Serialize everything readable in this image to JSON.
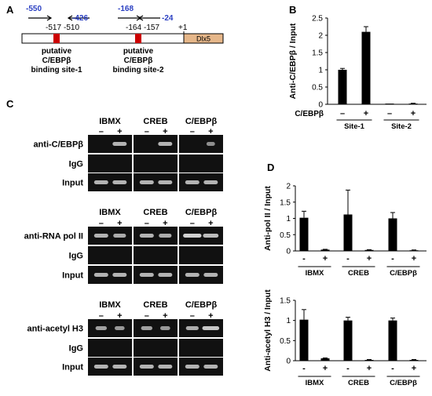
{
  "panels": {
    "A": "A",
    "B": "B",
    "C": "C",
    "D": "D"
  },
  "panel_a": {
    "primers": [
      "-550",
      "-426",
      "-168",
      "-24"
    ],
    "positions": [
      "-517",
      "-510",
      "-164",
      "-157",
      "+1"
    ],
    "gene": "Dlx5",
    "site1_label": [
      "putative",
      "C/EBPβ",
      "binding site-1"
    ],
    "site2_label": [
      "putative",
      "C/EBPβ",
      "binding site-2"
    ],
    "colors": {
      "primer": "#2a3fc2",
      "site": "#cc0000",
      "gene_box": "#e6b78a"
    }
  },
  "panel_c": {
    "groups": [
      "IBMX",
      "CREB",
      "C/EBPβ"
    ],
    "signs": [
      "–",
      "+"
    ],
    "blocks": [
      {
        "rows": [
          "anti-C/EBPβ",
          "IgG",
          "Input"
        ]
      },
      {
        "rows": [
          "anti-RNA pol II",
          "IgG",
          "Input"
        ]
      },
      {
        "rows": [
          "anti-acetyl H3",
          "IgG",
          "Input"
        ]
      }
    ]
  },
  "chart_data": [
    {
      "type": "bar",
      "panel": "B",
      "ylabel": "Anti-C/EBPβ / Input",
      "ylim": [
        0,
        2.5
      ],
      "yticks": [
        "0",
        "0.5",
        "1",
        "1.5",
        "2",
        "2.5"
      ],
      "row_label": "C/EBPβ",
      "signs": [
        "–",
        "+",
        "–",
        "+"
      ],
      "groups": [
        "Site-1",
        "Site-2"
      ],
      "values": [
        1.0,
        2.1,
        0.02,
        0.02
      ],
      "errors": [
        0.04,
        0.15,
        0.0,
        0.01
      ]
    },
    {
      "type": "bar",
      "panel": "D-top",
      "ylabel": "Anti-pol II / Input",
      "ylim": [
        0,
        2
      ],
      "yticks": [
        "0",
        "0.5",
        "1",
        "1.5",
        "2"
      ],
      "signs": [
        "-",
        "+",
        "-",
        "+",
        "-",
        "+"
      ],
      "groups": [
        "IBMX",
        "CREB",
        "C/EBPβ"
      ],
      "values": [
        1.02,
        0.04,
        1.12,
        0.03,
        1.0,
        0.02
      ],
      "errors": [
        0.2,
        0.01,
        0.75,
        0.01,
        0.18,
        0.01
      ]
    },
    {
      "type": "bar",
      "panel": "D-bottom",
      "ylabel": "Anti-acetyl H3 / Input",
      "ylim": [
        0,
        1.5
      ],
      "yticks": [
        "0",
        "0.5",
        "1",
        "1.5"
      ],
      "signs": [
        "-",
        "+",
        "-",
        "+",
        "-",
        "+"
      ],
      "groups": [
        "IBMX",
        "CREB",
        "C/EBPβ"
      ],
      "values": [
        1.02,
        0.06,
        1.0,
        0.02,
        1.0,
        0.02
      ],
      "errors": [
        0.25,
        0.01,
        0.08,
        0.01,
        0.06,
        0.01
      ]
    }
  ]
}
